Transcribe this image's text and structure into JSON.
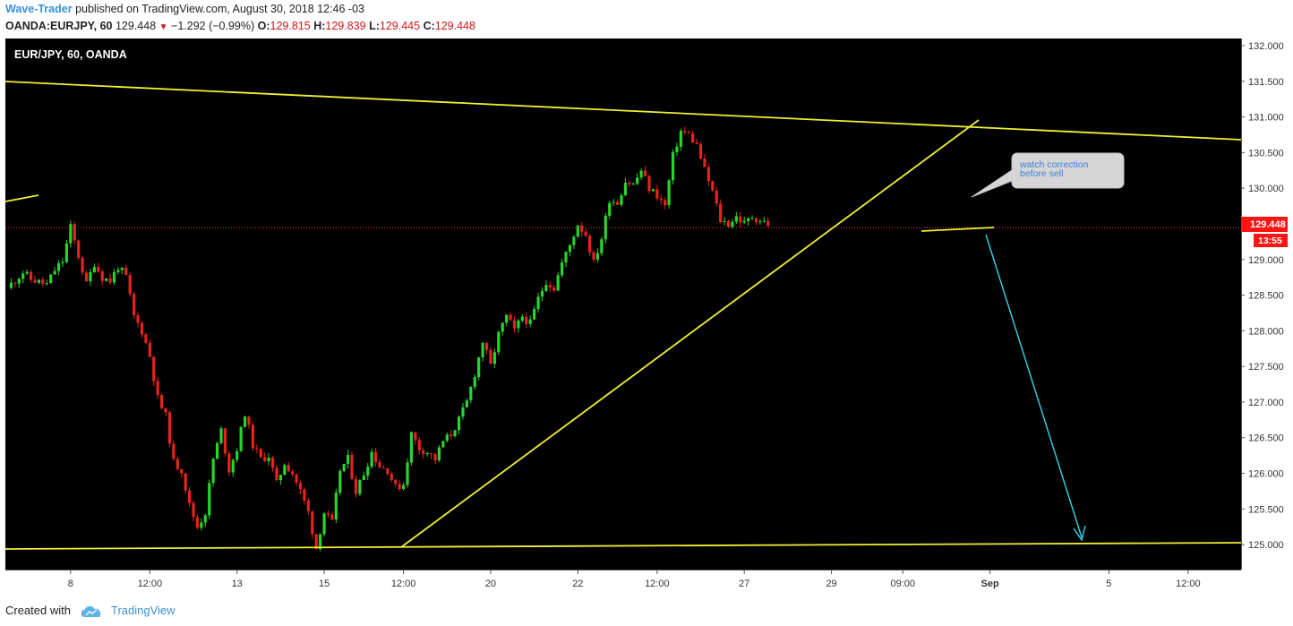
{
  "header": {
    "author": "Wave-Trader",
    "published_text": "published on TradingView.com, August 30, 2018 12:46 -03",
    "symbol_line": "OANDA:EURJPY, 60",
    "last_price": "129.448",
    "change": "−1.292 (−0.99%)",
    "open_label": "O:",
    "open": "129.815",
    "high_label": "H:",
    "high": "129.839",
    "low_label": "L:",
    "low": "129.445",
    "close_label": "C:",
    "close": "129.448"
  },
  "footer": {
    "created_with": "Created with",
    "brand": "TradingView"
  },
  "colors": {
    "background": "#000000",
    "up": "#26d62a",
    "down": "#e8221e",
    "trendline": "#f0f036",
    "target_arrow": "#34d8ee",
    "price_marker": "#ff1414"
  },
  "chart_data": {
    "type": "candlestick",
    "instrument_label": "EUR/JPY, 60, OANDA",
    "ylim": [
      124.65,
      132.1
    ],
    "y_ticks": [
      "132.000",
      "131.500",
      "131.000",
      "130.500",
      "130.000",
      "129.500",
      "129.000",
      "128.500",
      "128.000",
      "127.500",
      "127.000",
      "126.500",
      "126.000",
      "125.500",
      "125.000"
    ],
    "x_ticks": [
      "8",
      "12:00",
      "13",
      "15",
      "12:00",
      "20",
      "22",
      "12:00",
      "27",
      "29",
      "09:00",
      "Sep",
      "5",
      "12:00"
    ],
    "x_tick_index": [
      8,
      18,
      29,
      40,
      50,
      61,
      72,
      82,
      93,
      104,
      113,
      124,
      139,
      149
    ],
    "last_price_label": "129.448",
    "countdown_label": "13:55",
    "last_price": 129.448,
    "path": [
      [
        0,
        128.6
      ],
      [
        2,
        128.82
      ],
      [
        3,
        128.72
      ],
      [
        5,
        128.65
      ],
      [
        6,
        128.85
      ],
      [
        7,
        128.98
      ],
      [
        8,
        129.45
      ],
      [
        9,
        129.05
      ],
      [
        10,
        128.65
      ],
      [
        11,
        128.95
      ],
      [
        12,
        128.75
      ],
      [
        13,
        128.7
      ],
      [
        14,
        128.9
      ],
      [
        15,
        128.75
      ],
      [
        16,
        128.2
      ],
      [
        17,
        128.0
      ],
      [
        18,
        127.65
      ],
      [
        19,
        127.05
      ],
      [
        20,
        126.8
      ],
      [
        21,
        126.15
      ],
      [
        22,
        126.05
      ],
      [
        23,
        125.55
      ],
      [
        24,
        125.25
      ],
      [
        25,
        125.45
      ],
      [
        26,
        126.2
      ],
      [
        27,
        126.6
      ],
      [
        28,
        126.05
      ],
      [
        29,
        126.35
      ],
      [
        30,
        126.85
      ],
      [
        31,
        126.4
      ],
      [
        32,
        126.2
      ],
      [
        33,
        126.25
      ],
      [
        34,
        125.85
      ],
      [
        35,
        126.15
      ],
      [
        36,
        126.0
      ],
      [
        37,
        125.75
      ],
      [
        38,
        125.45
      ],
      [
        39,
        124.95
      ],
      [
        40,
        125.45
      ],
      [
        41,
        125.3
      ],
      [
        42,
        126.05
      ],
      [
        43,
        126.2
      ],
      [
        44,
        125.75
      ],
      [
        45,
        126.0
      ],
      [
        46,
        126.3
      ],
      [
        47,
        126.1
      ],
      [
        48,
        126.05
      ],
      [
        49,
        125.8
      ],
      [
        50,
        125.85
      ],
      [
        51,
        126.55
      ],
      [
        52,
        126.35
      ],
      [
        53,
        126.3
      ],
      [
        54,
        126.2
      ],
      [
        55,
        126.45
      ],
      [
        56,
        126.55
      ],
      [
        57,
        126.75
      ],
      [
        58,
        127.0
      ],
      [
        59,
        127.4
      ],
      [
        60,
        127.85
      ],
      [
        61,
        127.5
      ],
      [
        62,
        127.95
      ],
      [
        63,
        128.2
      ],
      [
        64,
        128.0
      ],
      [
        65,
        128.2
      ],
      [
        66,
        128.1
      ],
      [
        67,
        128.45
      ],
      [
        68,
        128.7
      ],
      [
        69,
        128.6
      ],
      [
        70,
        128.95
      ],
      [
        71,
        129.2
      ],
      [
        72,
        129.5
      ],
      [
        73,
        129.35
      ],
      [
        74,
        128.95
      ],
      [
        75,
        129.3
      ],
      [
        76,
        129.85
      ],
      [
        77,
        129.8
      ],
      [
        78,
        130.1
      ],
      [
        79,
        130.05
      ],
      [
        80,
        130.25
      ],
      [
        81,
        130.0
      ],
      [
        82,
        129.9
      ],
      [
        83,
        129.75
      ],
      [
        84,
        130.45
      ],
      [
        85,
        130.8
      ],
      [
        86,
        130.75
      ],
      [
        87,
        130.6
      ],
      [
        88,
        130.25
      ],
      [
        89,
        129.95
      ],
      [
        90,
        129.55
      ],
      [
        91,
        129.5
      ],
      [
        92,
        129.6
      ],
      [
        93,
        129.5
      ],
      [
        94,
        129.6
      ],
      [
        95,
        129.55
      ],
      [
        96,
        129.5
      ]
    ],
    "annotations": {
      "callout_text_line1": "watch correction",
      "callout_text_line2": "before sell"
    }
  }
}
